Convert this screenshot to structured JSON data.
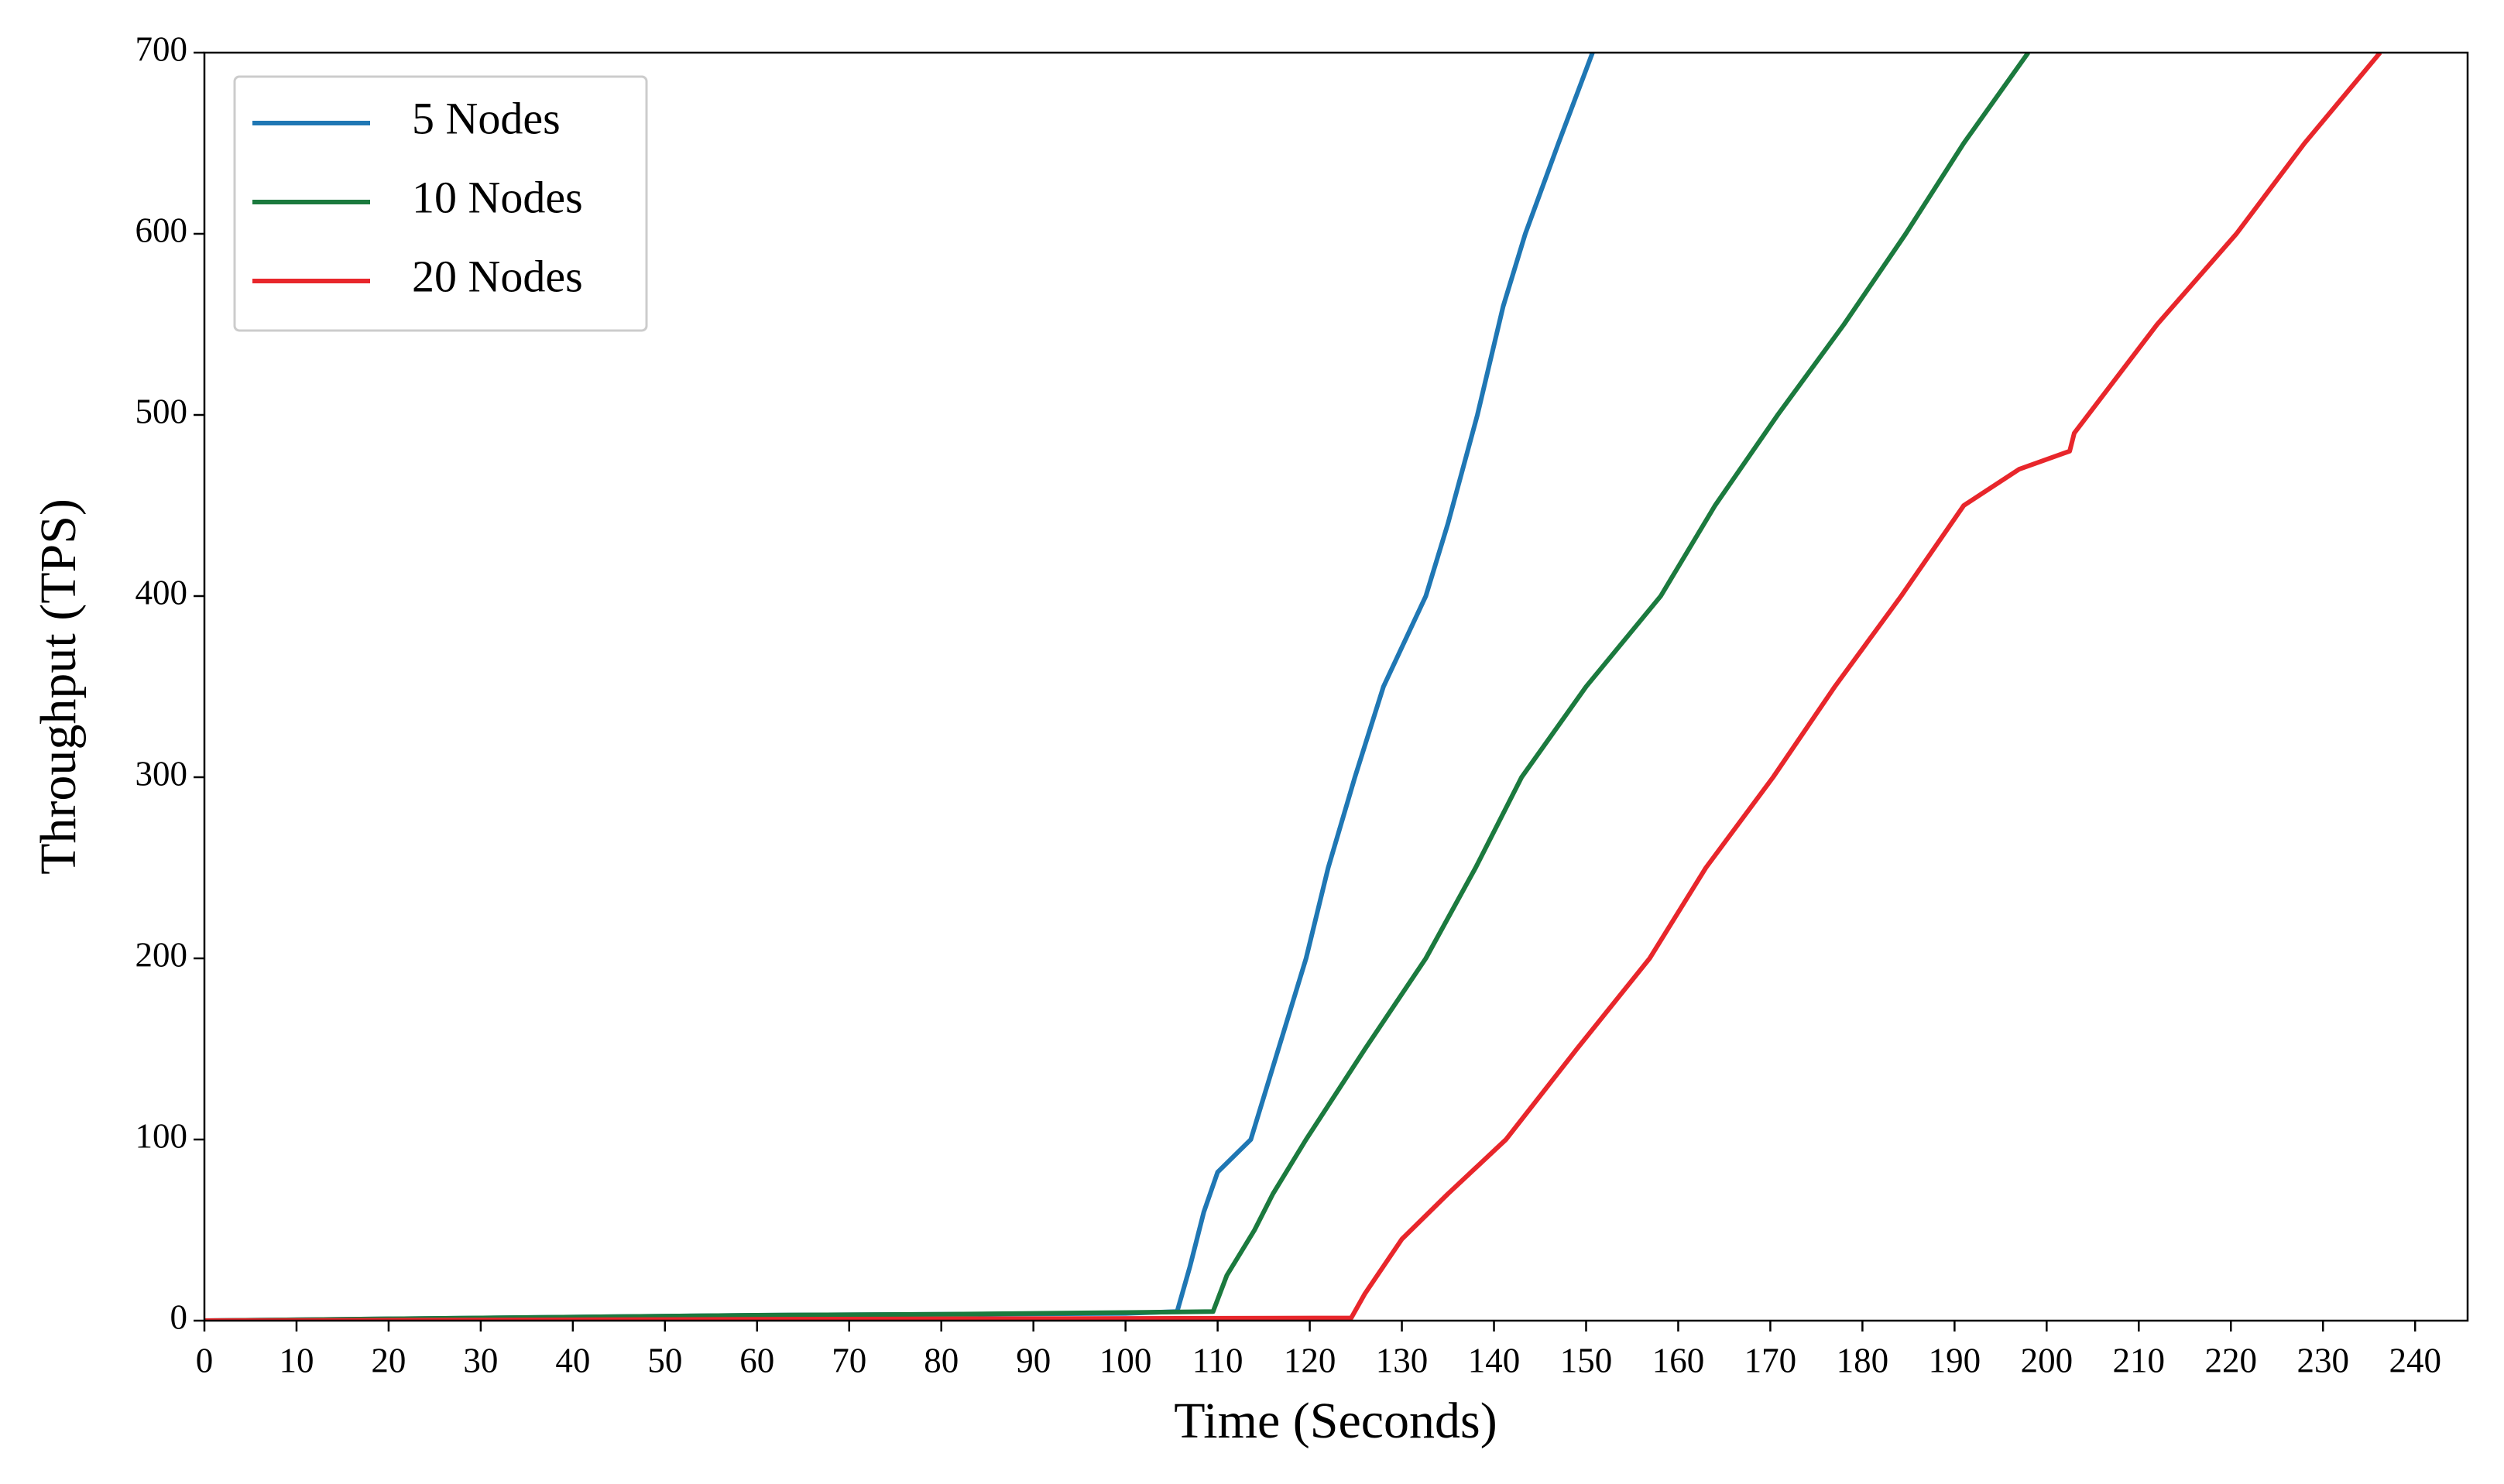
{
  "chart_data": {
    "type": "line",
    "xlabel": "Time (Seconds)",
    "ylabel": "Throughput (TPS)",
    "xlim": [
      0,
      245.7
    ],
    "ylim": [
      0,
      700
    ],
    "xticks": [
      0,
      10,
      20,
      30,
      40,
      50,
      60,
      70,
      80,
      90,
      100,
      110,
      120,
      130,
      140,
      150,
      160,
      170,
      180,
      190,
      200,
      210,
      220,
      230,
      240
    ],
    "yticks": [
      0,
      100,
      200,
      300,
      400,
      500,
      600,
      700
    ],
    "grid": false,
    "legend": "upper left",
    "series": [
      {
        "name": "5 Nodes",
        "color": "#1f77b4",
        "x": [
          0,
          20,
          40,
          60,
          80,
          100,
          105.6,
          107,
          108.5,
          110,
          113.6,
          116,
          119.6,
          122,
          124.9,
          128,
          132.6,
          135,
          138.2,
          141,
          143.4,
          147,
          150.7
        ],
        "values": [
          0,
          1,
          2,
          3,
          3.5,
          4,
          5,
          30,
          60,
          82,
          100,
          140,
          200,
          250,
          300,
          350,
          400,
          440,
          500,
          560,
          600,
          650,
          700
        ]
      },
      {
        "name": "10 Nodes",
        "color": "#1b7a3e",
        "x": [
          0,
          20,
          40,
          60,
          80,
          100,
          109.5,
          111,
          114,
          116,
          119.6,
          126,
          132.6,
          138,
          143,
          150,
          158.1,
          164,
          170.8,
          178,
          184.7,
          191,
          198
        ],
        "values": [
          0,
          1,
          2,
          3,
          3.5,
          4.5,
          5,
          25,
          50,
          70,
          100,
          150,
          200,
          250,
          300,
          350,
          400,
          450,
          500,
          550,
          600,
          650,
          700
        ]
      },
      {
        "name": "20 Nodes",
        "color": "#e8262b",
        "x": [
          0,
          40,
          80,
          124.5,
          126,
          130,
          135,
          141.3,
          149,
          156.9,
          163,
          170.3,
          177,
          184.2,
          191,
          197,
          202.5,
          203,
          212,
          220.6,
          228,
          236.2
        ],
        "values": [
          0,
          0.5,
          1,
          1.5,
          15,
          45,
          70,
          100,
          150,
          200,
          250,
          300,
          350,
          400,
          450,
          470,
          480,
          490,
          550,
          600,
          650,
          700
        ]
      }
    ]
  }
}
